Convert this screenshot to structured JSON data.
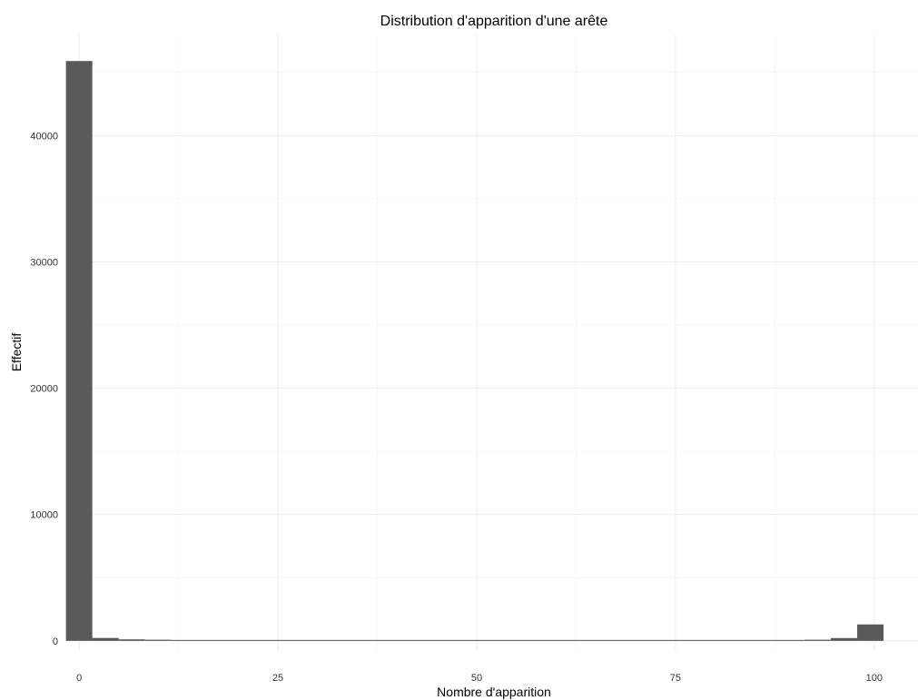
{
  "chart_data": {
    "type": "bar",
    "title": "Distribution d'apparition d'une arête",
    "xlabel": "Nombre d'apparition",
    "ylabel": "Effectif",
    "xlim": [
      -1.5,
      105.5
    ],
    "ylim": [
      -800,
      48000
    ],
    "x_ticks": [
      0,
      25,
      50,
      75,
      100
    ],
    "y_ticks": [
      0,
      10000,
      20000,
      30000,
      40000
    ],
    "x_tick_labels": [
      "0",
      "25",
      "50",
      "75",
      "100"
    ],
    "y_tick_labels": [
      "0",
      "10000",
      "20000",
      "30000",
      "40000"
    ],
    "grid": true,
    "bin_width": 3.317,
    "bins": [
      {
        "x": 0.0,
        "value": 45900
      },
      {
        "x": 3.317,
        "value": 230
      },
      {
        "x": 6.634,
        "value": 120
      },
      {
        "x": 9.951,
        "value": 90
      },
      {
        "x": 13.268,
        "value": 70
      },
      {
        "x": 16.585,
        "value": 40
      },
      {
        "x": 19.902,
        "value": 30
      },
      {
        "x": 23.219,
        "value": 25
      },
      {
        "x": 26.536,
        "value": 20
      },
      {
        "x": 29.853,
        "value": 20
      },
      {
        "x": 33.17,
        "value": 15
      },
      {
        "x": 36.487,
        "value": 15
      },
      {
        "x": 39.804,
        "value": 15
      },
      {
        "x": 43.121,
        "value": 15
      },
      {
        "x": 46.438,
        "value": 15
      },
      {
        "x": 49.755,
        "value": 15
      },
      {
        "x": 53.072,
        "value": 15
      },
      {
        "x": 56.389,
        "value": 15
      },
      {
        "x": 59.706,
        "value": 15
      },
      {
        "x": 63.023,
        "value": 15
      },
      {
        "x": 66.34,
        "value": 15
      },
      {
        "x": 69.657,
        "value": 15
      },
      {
        "x": 72.974,
        "value": 15
      },
      {
        "x": 76.291,
        "value": 20
      },
      {
        "x": 79.608,
        "value": 20
      },
      {
        "x": 82.925,
        "value": 25
      },
      {
        "x": 86.242,
        "value": 30
      },
      {
        "x": 89.559,
        "value": 60
      },
      {
        "x": 92.876,
        "value": 90
      },
      {
        "x": 96.193,
        "value": 220
      },
      {
        "x": 99.51,
        "value": 1300
      }
    ],
    "bar_color": "#595959"
  }
}
